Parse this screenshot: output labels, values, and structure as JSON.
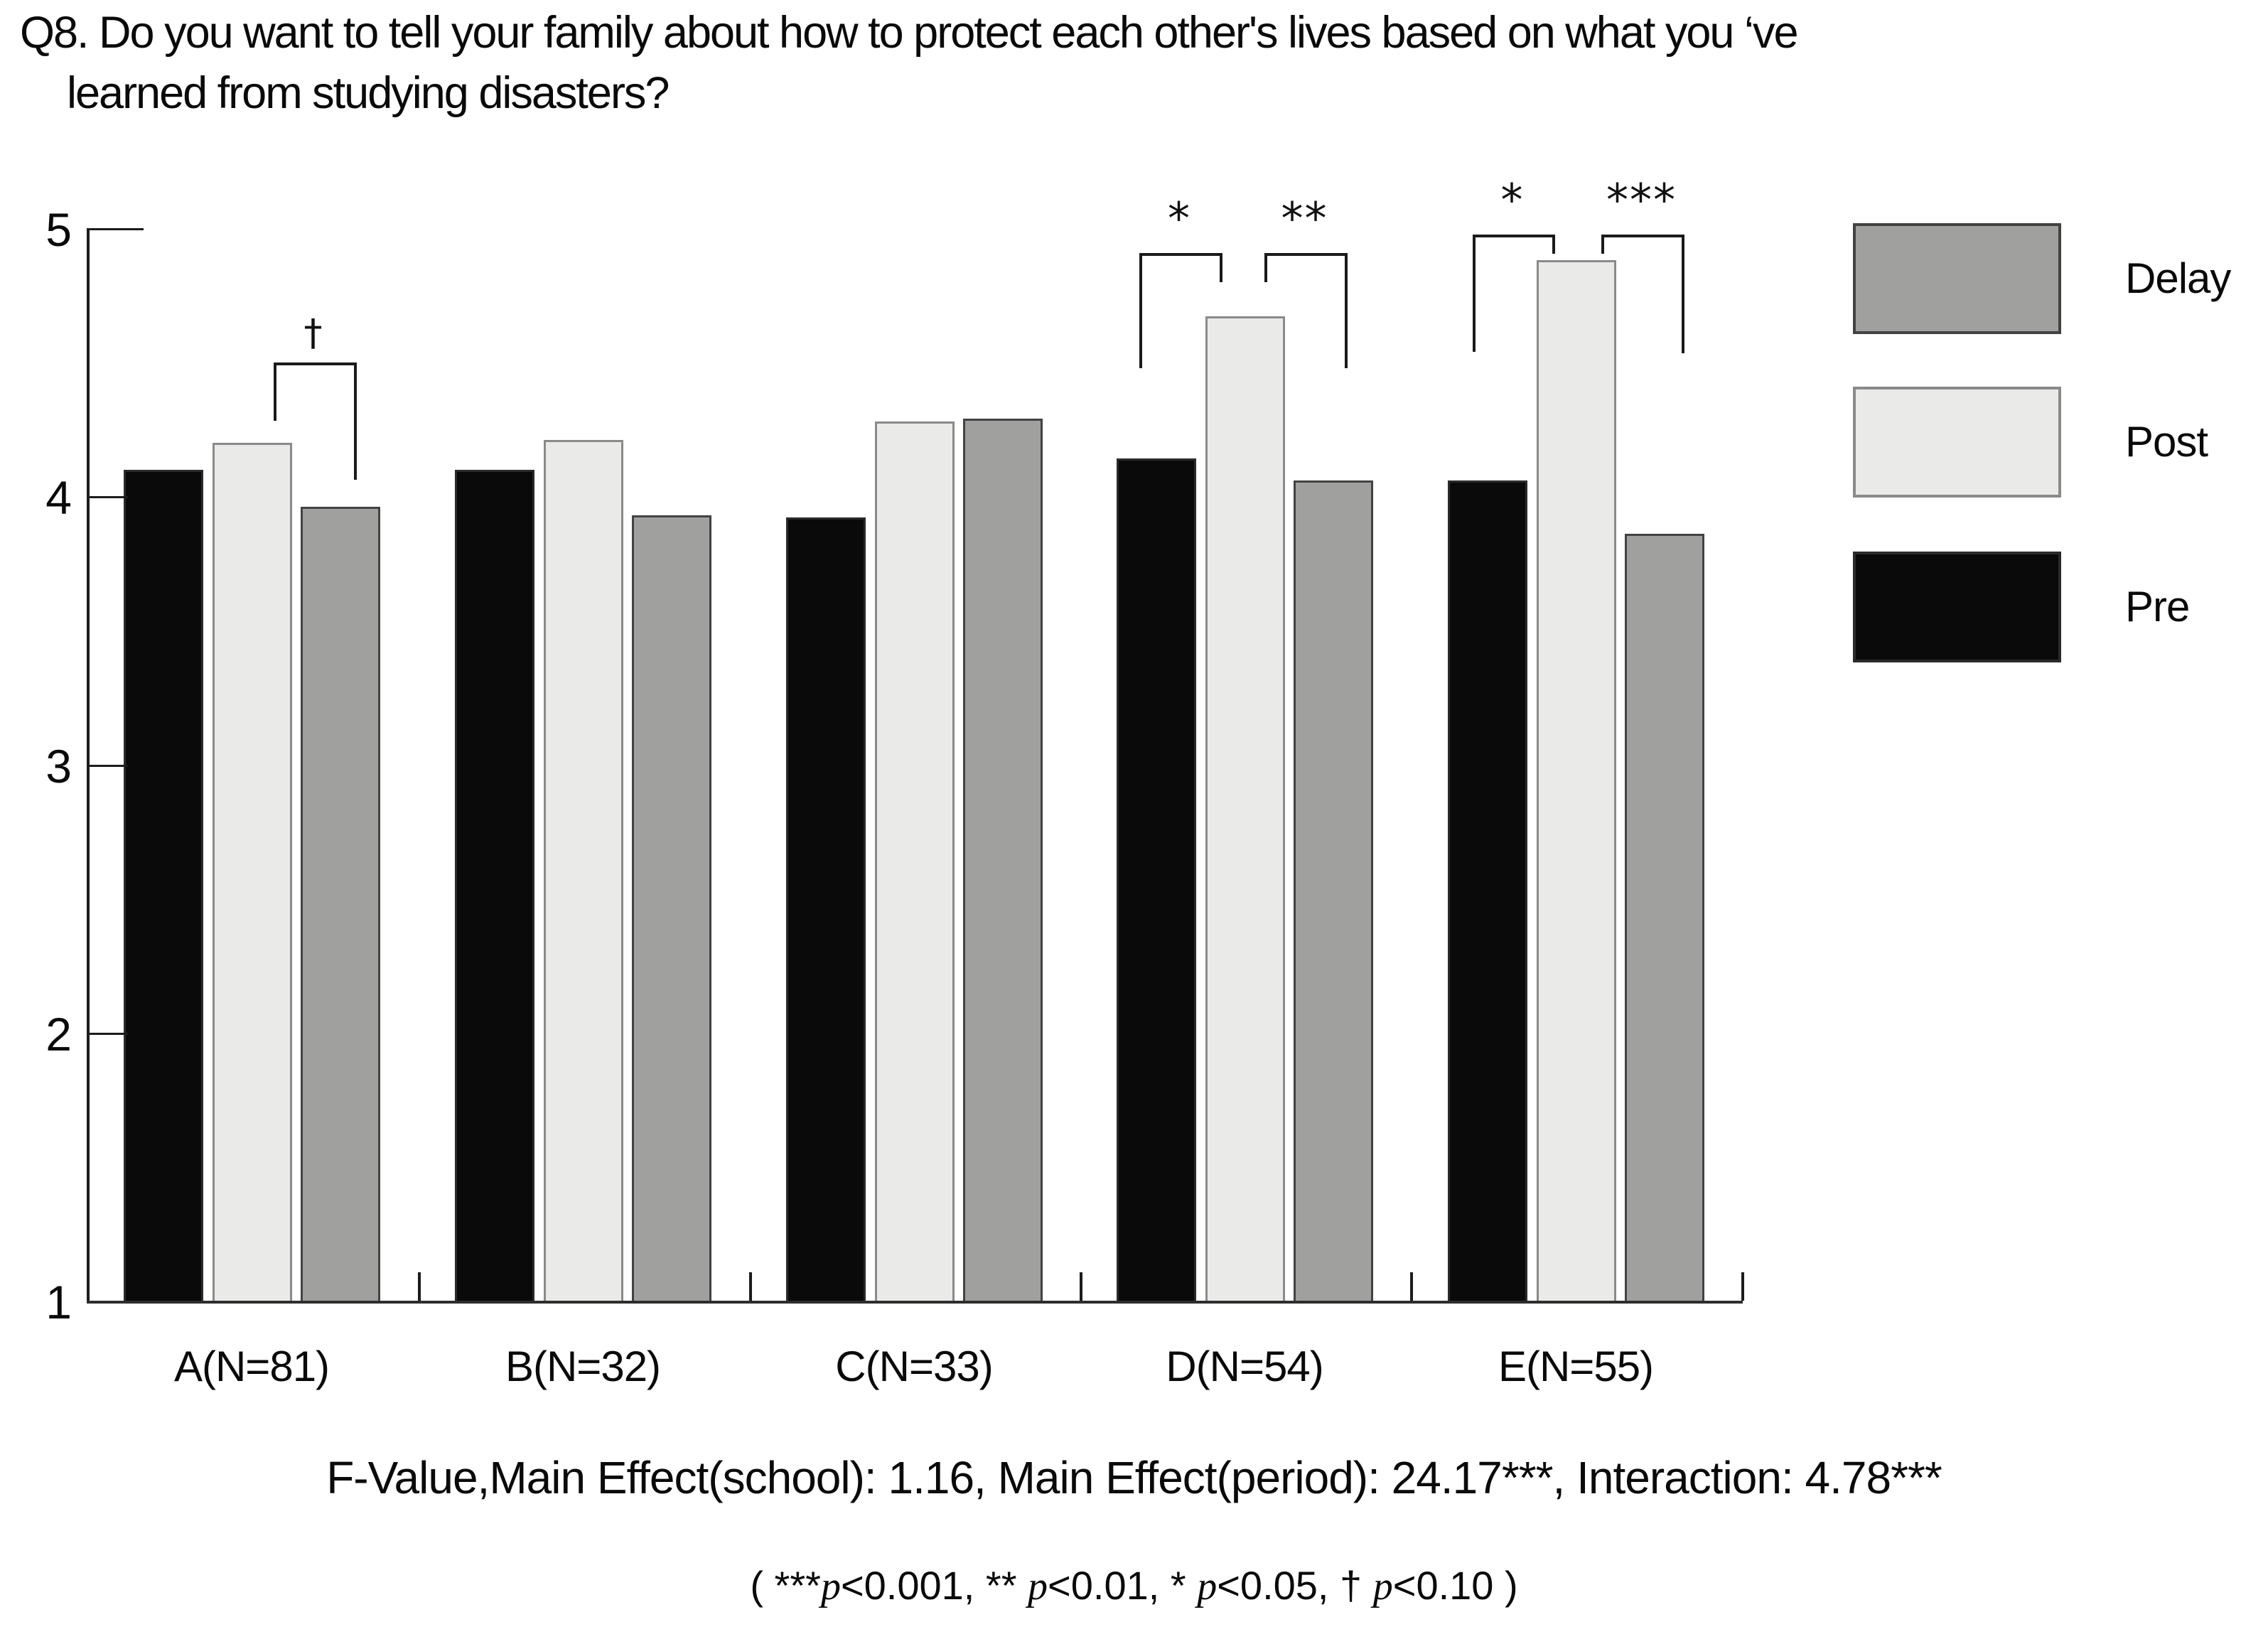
{
  "title": {
    "line1": "Q8. Do you want to tell your family about how to protect each other's lives based on what you ‘ve",
    "line2": "learned from studying disasters?"
  },
  "chart_data": {
    "type": "bar",
    "categories": [
      "A(N=81)",
      "B(N=32)",
      "C(N=33)",
      "D(N=54)",
      "E(N=55)"
    ],
    "series": [
      {
        "name": "Pre",
        "color": "#0a0a0a",
        "border": "#2a2a2a",
        "values": [
          4.1,
          4.1,
          3.92,
          4.14,
          4.06
        ]
      },
      {
        "name": "Post",
        "color": "#eaebe9",
        "border": "#8a8a8a",
        "values": [
          4.2,
          4.21,
          4.28,
          4.67,
          4.88
        ]
      },
      {
        "name": "Delay",
        "color": "#a0a19f",
        "border": "#424242",
        "values": [
          3.96,
          3.93,
          4.29,
          4.06,
          3.86
        ]
      }
    ],
    "ylim": [
      1,
      5
    ],
    "yticks": [
      5,
      4,
      3,
      2,
      1
    ],
    "grid": "off",
    "legend_position": "right",
    "legend_order": [
      "Delay",
      "Post",
      "Pre"
    ],
    "annotations": [
      {
        "group": "A",
        "between": [
          "Post",
          "Delay"
        ],
        "symbol": "†"
      },
      {
        "group": "D",
        "between": [
          "Pre",
          "Post"
        ],
        "symbol": "*"
      },
      {
        "group": "D",
        "between": [
          "Post",
          "Delay"
        ],
        "symbol": "**"
      },
      {
        "group": "E",
        "between": [
          "Pre",
          "Post"
        ],
        "symbol": "*"
      },
      {
        "group": "E",
        "between": [
          "Post",
          "Delay"
        ],
        "symbol": "***"
      }
    ]
  },
  "footer": {
    "line1": "F-Value,Main Effect(school): 1.16,  Main Effect(period): 24.17***, Interaction: 4.78***",
    "line2_segments": [
      {
        "text": "( ***"
      },
      {
        "text": "p",
        "italic": true
      },
      {
        "text": "<0.001,  ** "
      },
      {
        "text": "p",
        "italic": true
      },
      {
        "text": "<0.01, * "
      },
      {
        "text": "p",
        "italic": true
      },
      {
        "text": "<0.05,  † "
      },
      {
        "text": "p",
        "italic": true
      },
      {
        "text": "<0.10 )"
      }
    ]
  }
}
